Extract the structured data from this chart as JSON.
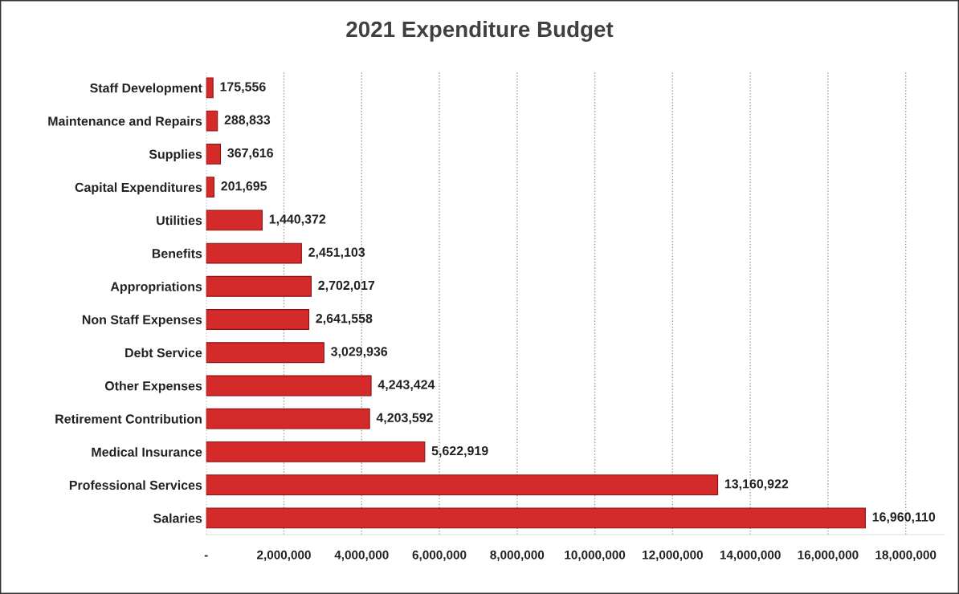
{
  "chart_data": {
    "type": "bar",
    "orientation": "horizontal",
    "title": "2021 Expenditure Budget",
    "categories": [
      "Staff Development",
      "Maintenance and Repairs",
      "Supplies",
      "Capital Expenditures",
      "Utilities",
      "Benefits",
      "Appropriations",
      "Non Staff Expenses",
      "Debt Service",
      "Other Expenses",
      "Retirement Contribution",
      "Medical Insurance",
      "Professional Services",
      "Salaries"
    ],
    "values": [
      175556,
      288833,
      367616,
      201695,
      1440372,
      2451103,
      2702017,
      2641558,
      3029936,
      4243424,
      4203592,
      5622919,
      13160922,
      16960110
    ],
    "value_labels": [
      "175,556",
      "288,833",
      "367,616",
      "201,695",
      "1,440,372",
      "2,451,103",
      "2,702,017",
      "2,641,558",
      "3,029,936",
      "4,243,424",
      "4,203,592",
      "5,622,919",
      "13,160,922",
      "16,960,110"
    ],
    "color": "#d42a2a",
    "xlim": [
      0,
      19000000
    ],
    "xticks": [
      {
        "value": 0,
        "label": "-"
      },
      {
        "value": 2000000,
        "label": "2,000,000"
      },
      {
        "value": 4000000,
        "label": "4,000,000"
      },
      {
        "value": 6000000,
        "label": "6,000,000"
      },
      {
        "value": 8000000,
        "label": "8,000,000"
      },
      {
        "value": 10000000,
        "label": "10,000,000"
      },
      {
        "value": 12000000,
        "label": "12,000,000"
      },
      {
        "value": 14000000,
        "label": "14,000,000"
      },
      {
        "value": 16000000,
        "label": "16,000,000"
      },
      {
        "value": 18000000,
        "label": "18,000,000"
      }
    ],
    "grid": "x",
    "legend": false
  }
}
